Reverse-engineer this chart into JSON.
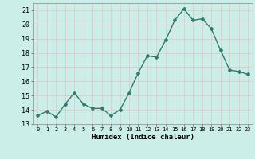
{
  "x": [
    0,
    1,
    2,
    3,
    4,
    5,
    6,
    7,
    8,
    9,
    10,
    11,
    12,
    13,
    14,
    15,
    16,
    17,
    18,
    19,
    20,
    21,
    22,
    23
  ],
  "y": [
    13.6,
    13.9,
    13.5,
    14.4,
    15.2,
    14.4,
    14.1,
    14.1,
    13.6,
    14.0,
    15.2,
    16.6,
    17.8,
    17.7,
    18.9,
    20.3,
    21.1,
    20.3,
    20.4,
    19.7,
    18.2,
    16.8,
    16.7,
    16.5
  ],
  "line_color": "#2e7d6e",
  "marker": "D",
  "marker_size": 2,
  "xlabel": "Humidex (Indice chaleur)",
  "ylim": [
    13,
    21.5
  ],
  "xlim": [
    -0.5,
    23.5
  ],
  "yticks": [
    13,
    14,
    15,
    16,
    17,
    18,
    19,
    20,
    21
  ],
  "xtick_labels": [
    "0",
    "1",
    "2",
    "3",
    "4",
    "5",
    "6",
    "7",
    "8",
    "9",
    "10",
    "11",
    "12",
    "13",
    "14",
    "15",
    "16",
    "17",
    "18",
    "19",
    "20",
    "21",
    "22",
    "23"
  ],
  "bg_color": "#cceee8",
  "grid_color": "#e8c8c8",
  "spine_color": "#888888"
}
